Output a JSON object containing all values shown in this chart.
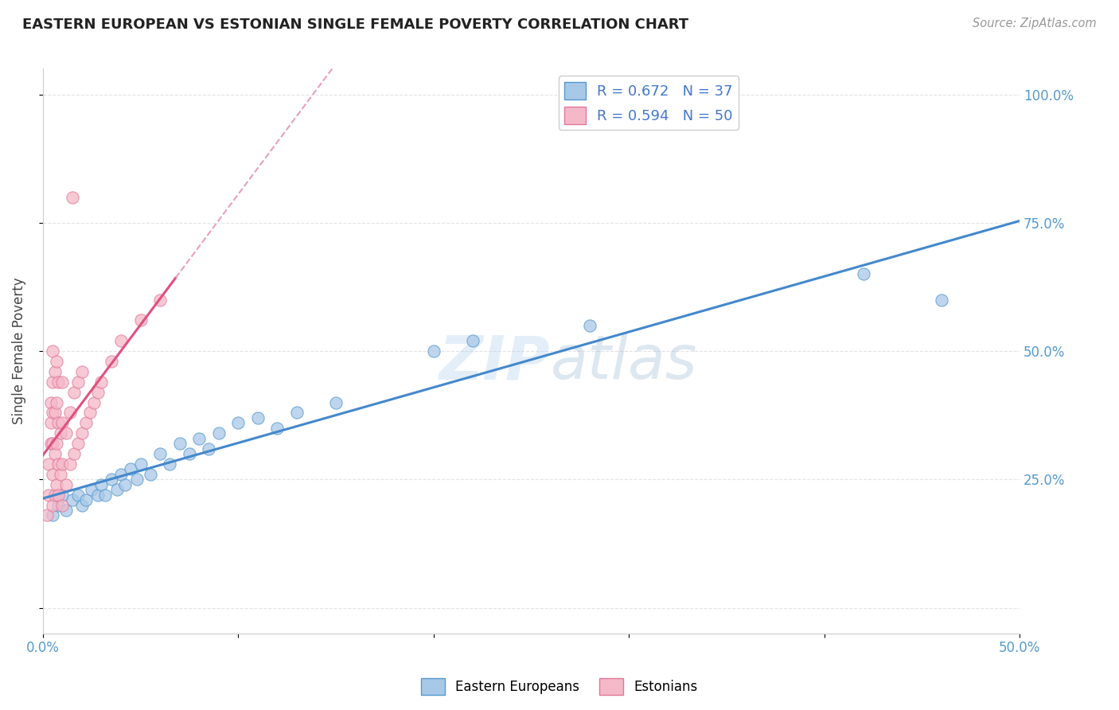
{
  "title": "EASTERN EUROPEAN VS ESTONIAN SINGLE FEMALE POVERTY CORRELATION CHART",
  "source": "Source: ZipAtlas.com",
  "ylabel": "Single Female Poverty",
  "xlim": [
    0.0,
    0.5
  ],
  "ylim": [
    -0.05,
    1.05
  ],
  "R_blue": 0.672,
  "N_blue": 37,
  "R_pink": 0.594,
  "N_pink": 50,
  "watermark_zip": "ZIP",
  "watermark_atlas": "atlas",
  "blue_scatter_color": "#a8c8e8",
  "blue_edge_color": "#5599cc",
  "pink_scatter_color": "#f5b8c8",
  "pink_edge_color": "#e07898",
  "blue_line_color": "#4488cc",
  "pink_line_color": "#e05080",
  "pink_dashed_color": "#e8a0b8",
  "title_color": "#222222",
  "source_color": "#999999",
  "tick_color": "#5599cc",
  "ylabel_color": "#444444",
  "legend_text_color": "#4477cc",
  "legend_N_color": "#22aa22",
  "background_color": "#ffffff",
  "grid_color": "#dddddd",
  "blue_scatter": [
    [
      0.005,
      0.18
    ],
    [
      0.008,
      0.2
    ],
    [
      0.01,
      0.22
    ],
    [
      0.012,
      0.19
    ],
    [
      0.015,
      0.21
    ],
    [
      0.018,
      0.22
    ],
    [
      0.02,
      0.2
    ],
    [
      0.022,
      0.21
    ],
    [
      0.025,
      0.23
    ],
    [
      0.028,
      0.22
    ],
    [
      0.03,
      0.24
    ],
    [
      0.032,
      0.22
    ],
    [
      0.035,
      0.25
    ],
    [
      0.038,
      0.23
    ],
    [
      0.04,
      0.26
    ],
    [
      0.042,
      0.24
    ],
    [
      0.045,
      0.27
    ],
    [
      0.048,
      0.25
    ],
    [
      0.05,
      0.28
    ],
    [
      0.055,
      0.26
    ],
    [
      0.06,
      0.3
    ],
    [
      0.065,
      0.28
    ],
    [
      0.07,
      0.32
    ],
    [
      0.075,
      0.3
    ],
    [
      0.08,
      0.33
    ],
    [
      0.085,
      0.31
    ],
    [
      0.09,
      0.34
    ],
    [
      0.1,
      0.36
    ],
    [
      0.11,
      0.37
    ],
    [
      0.12,
      0.35
    ],
    [
      0.13,
      0.38
    ],
    [
      0.15,
      0.4
    ],
    [
      0.2,
      0.5
    ],
    [
      0.22,
      0.52
    ],
    [
      0.28,
      0.55
    ],
    [
      0.42,
      0.65
    ],
    [
      0.46,
      0.6
    ]
  ],
  "pink_scatter": [
    [
      0.002,
      0.18
    ],
    [
      0.003,
      0.22
    ],
    [
      0.003,
      0.28
    ],
    [
      0.004,
      0.32
    ],
    [
      0.004,
      0.36
    ],
    [
      0.004,
      0.4
    ],
    [
      0.005,
      0.2
    ],
    [
      0.005,
      0.26
    ],
    [
      0.005,
      0.32
    ],
    [
      0.005,
      0.38
    ],
    [
      0.005,
      0.44
    ],
    [
      0.005,
      0.5
    ],
    [
      0.006,
      0.22
    ],
    [
      0.006,
      0.3
    ],
    [
      0.006,
      0.38
    ],
    [
      0.006,
      0.46
    ],
    [
      0.007,
      0.24
    ],
    [
      0.007,
      0.32
    ],
    [
      0.007,
      0.4
    ],
    [
      0.007,
      0.48
    ],
    [
      0.008,
      0.22
    ],
    [
      0.008,
      0.28
    ],
    [
      0.008,
      0.36
    ],
    [
      0.008,
      0.44
    ],
    [
      0.009,
      0.26
    ],
    [
      0.009,
      0.34
    ],
    [
      0.01,
      0.2
    ],
    [
      0.01,
      0.28
    ],
    [
      0.01,
      0.36
    ],
    [
      0.01,
      0.44
    ],
    [
      0.012,
      0.24
    ],
    [
      0.012,
      0.34
    ],
    [
      0.014,
      0.28
    ],
    [
      0.014,
      0.38
    ],
    [
      0.016,
      0.3
    ],
    [
      0.016,
      0.42
    ],
    [
      0.018,
      0.32
    ],
    [
      0.018,
      0.44
    ],
    [
      0.02,
      0.34
    ],
    [
      0.02,
      0.46
    ],
    [
      0.022,
      0.36
    ],
    [
      0.024,
      0.38
    ],
    [
      0.026,
      0.4
    ],
    [
      0.028,
      0.42
    ],
    [
      0.03,
      0.44
    ],
    [
      0.035,
      0.48
    ],
    [
      0.04,
      0.52
    ],
    [
      0.05,
      0.56
    ],
    [
      0.06,
      0.6
    ],
    [
      0.015,
      0.8
    ]
  ]
}
